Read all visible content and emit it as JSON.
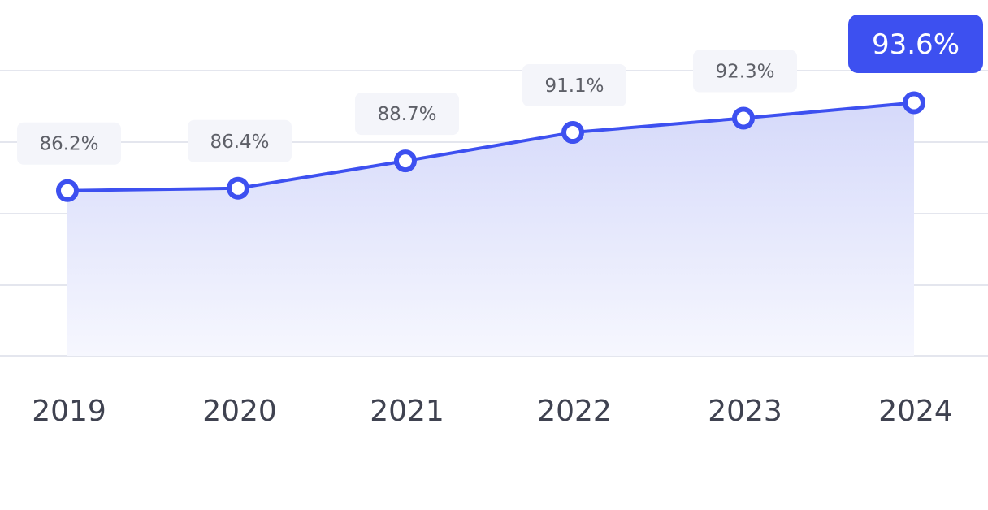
{
  "chart_data": {
    "type": "area",
    "categories": [
      "2019",
      "2020",
      "2021",
      "2022",
      "2023",
      "2024"
    ],
    "values": [
      86.2,
      86.4,
      88.7,
      91.1,
      92.3,
      93.6
    ],
    "value_labels": [
      "86.2%",
      "86.4%",
      "88.7%",
      "91.1%",
      "92.3%",
      "93.6%"
    ],
    "highlight_index": 5,
    "ylim": [
      72.3,
      96.3
    ],
    "grid": true,
    "title": "",
    "xlabel": "",
    "ylabel": "",
    "colors": {
      "line": "#3d50f0",
      "highlight": "#3d50f0",
      "highlight_text": "#ffffff",
      "label_bg": "#f4f5fa",
      "label_text": "#5e6068",
      "axis_text": "#3f4250",
      "grid": "#dcdde8",
      "area_top": "#d5d9fa",
      "area_bottom": "#f6f7fe"
    }
  }
}
